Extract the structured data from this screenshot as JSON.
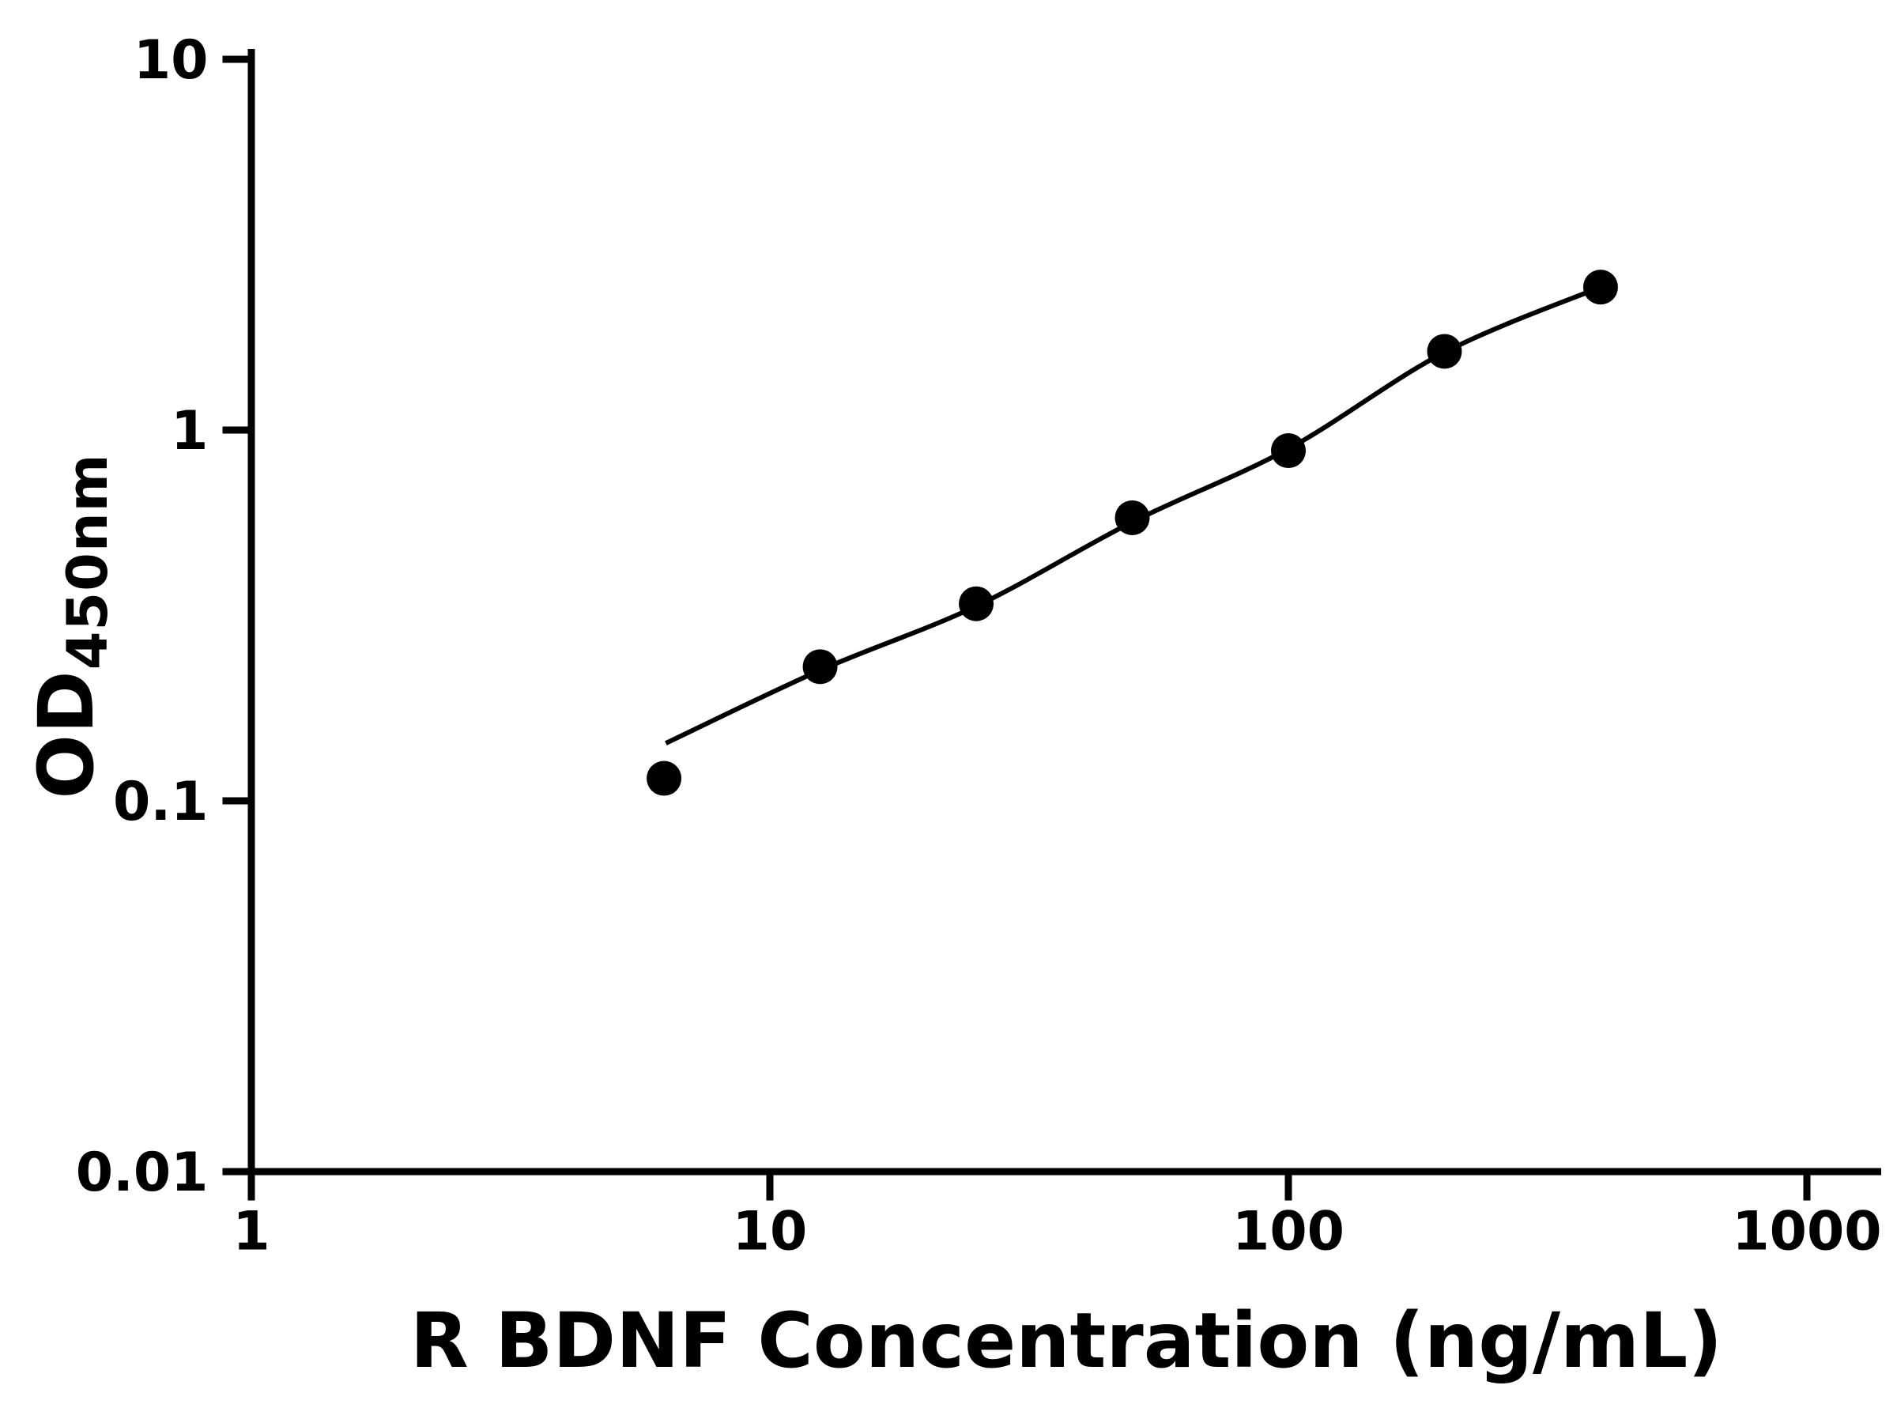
{
  "figure": {
    "background_color": "#ffffff",
    "axis_color": "#000000",
    "text_color": "#000000"
  },
  "chart_data": {
    "type": "scatter",
    "title": "",
    "xlabel": "R BDNF Concentration (ng/mL)",
    "ylabel": "OD450nm",
    "ylabel_main": "OD",
    "ylabel_sub": "450nm",
    "x_scale": "log",
    "y_scale": "log",
    "xlim": [
      1,
      1000
    ],
    "ylim": [
      0.01,
      10
    ],
    "x_ticks": [
      1,
      10,
      100,
      1000
    ],
    "x_tick_labels": [
      "1",
      "10",
      "100",
      "1000"
    ],
    "y_ticks": [
      0.01,
      0.1,
      1,
      10
    ],
    "y_tick_labels": [
      "0.01",
      "0.1",
      "1",
      "10"
    ],
    "grid": false,
    "legend": "none",
    "marker_color": "#000000",
    "line_color": "#000000",
    "points": {
      "x": [
        6.25,
        12.5,
        25,
        50,
        100,
        200,
        400
      ],
      "y": [
        0.115,
        0.23,
        0.34,
        0.58,
        0.88,
        1.63,
        2.43
      ]
    },
    "fit_curve": {
      "x": [
        6.3,
        12.5,
        25,
        50,
        100,
        200,
        400
      ],
      "y": [
        0.143,
        0.225,
        0.335,
        0.565,
        0.89,
        1.62,
        2.43
      ]
    }
  }
}
